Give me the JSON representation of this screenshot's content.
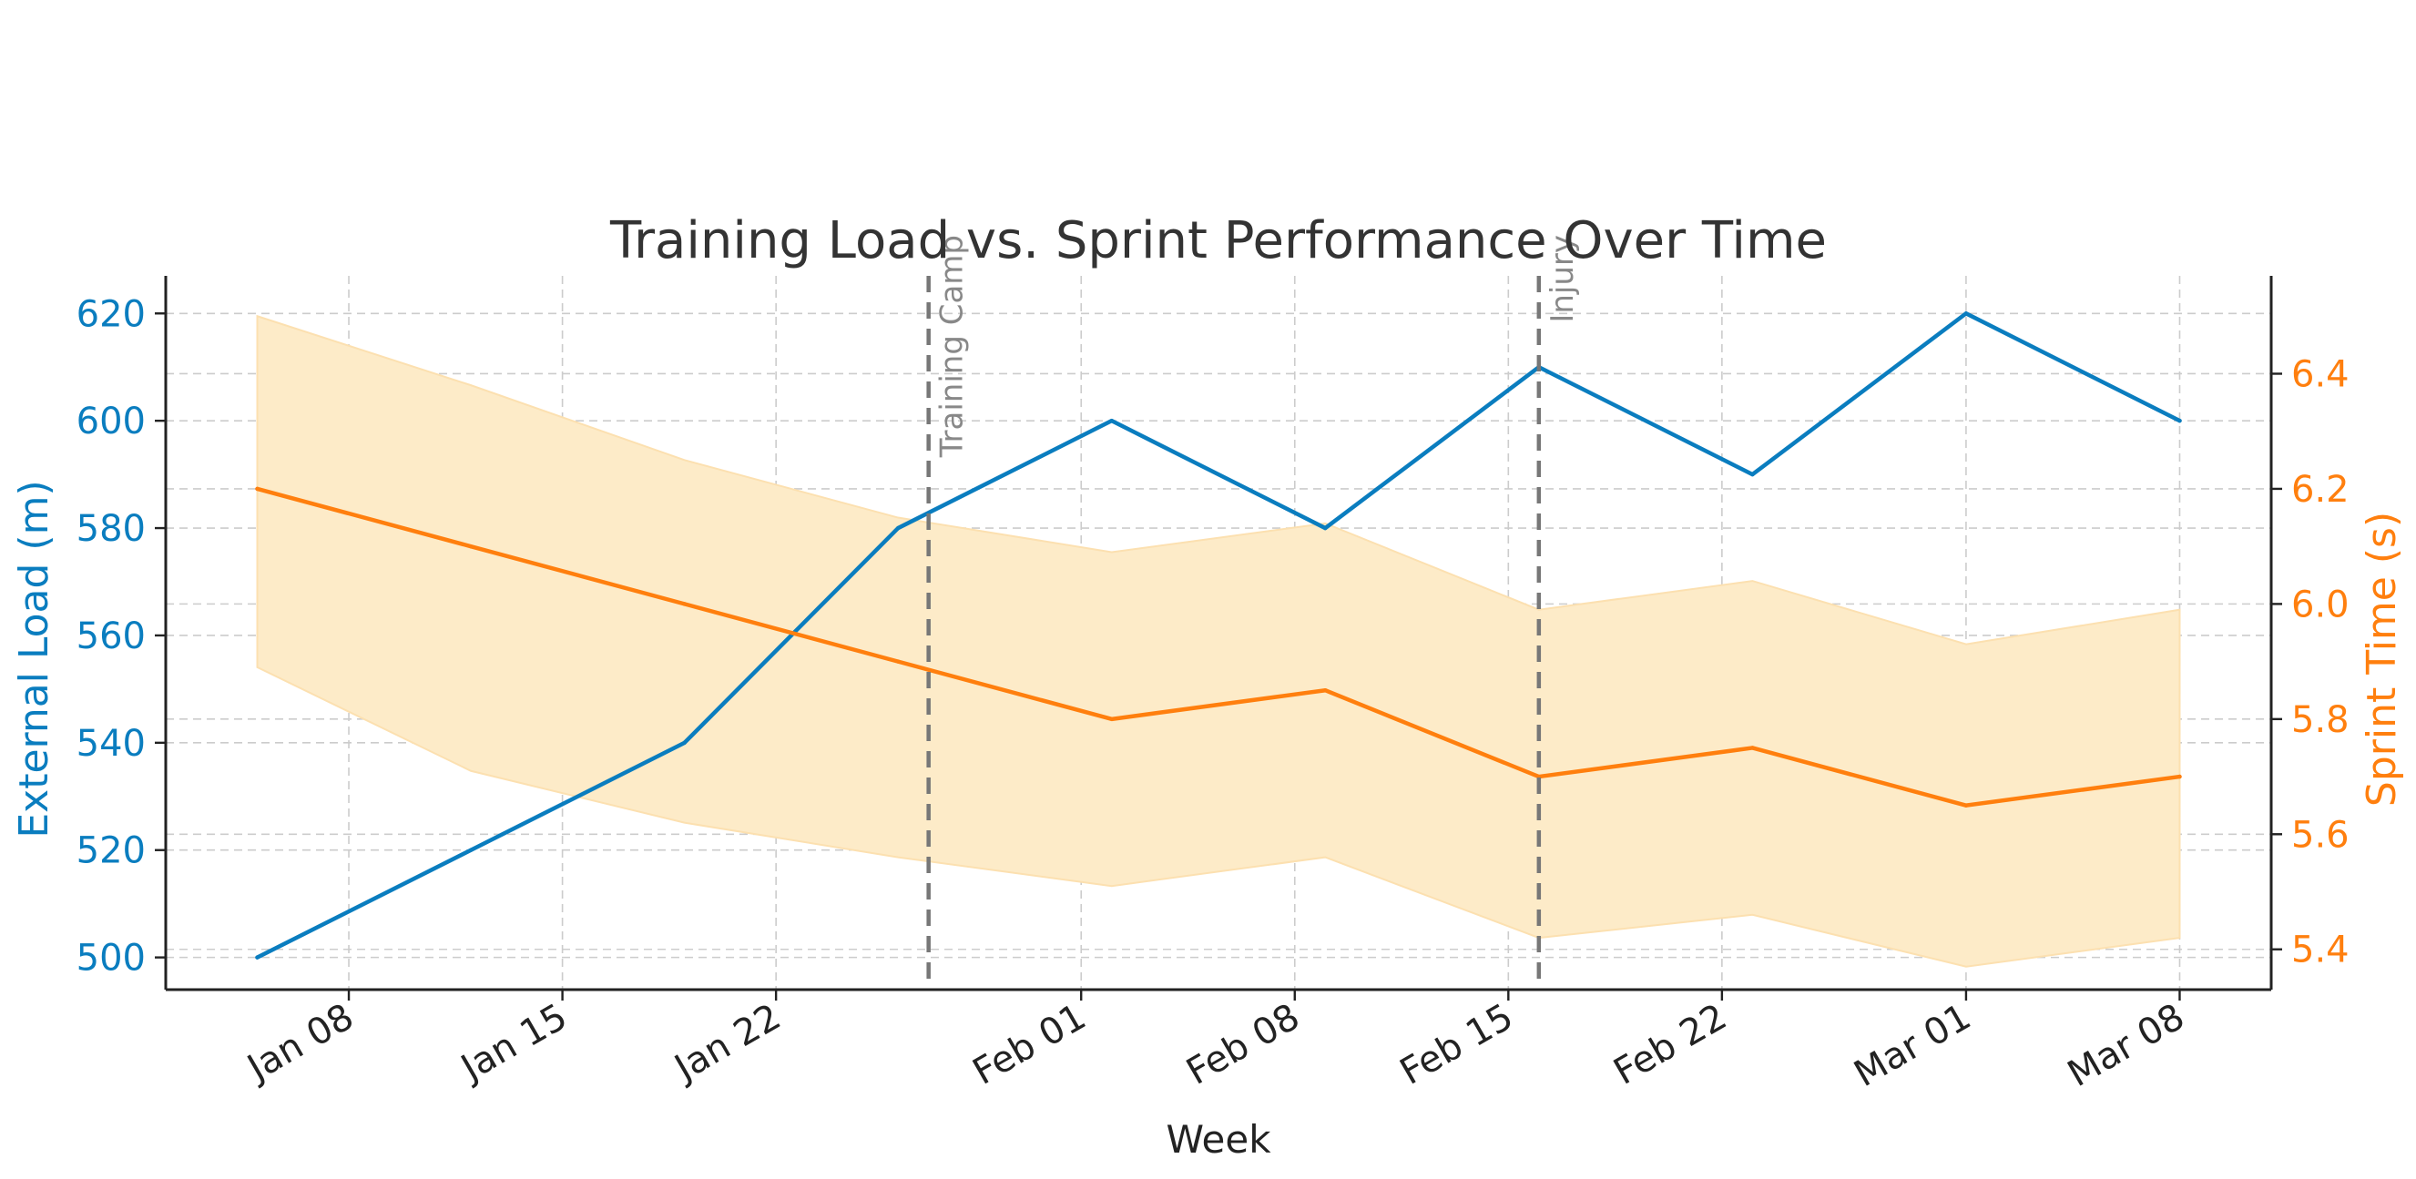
{
  "chart_data": {
    "type": "line",
    "title": "Training Load vs. Sprint Performance Over Time",
    "xlabel": "Week",
    "x": [
      "2024-01-05",
      "2024-01-12",
      "2024-01-19",
      "2024-01-26",
      "2024-02-02",
      "2024-02-09",
      "2024-02-16",
      "2024-02-23",
      "2024-03-01",
      "2024-03-08"
    ],
    "x_ticks": [
      {
        "date": "2024-01-08",
        "label": "Jan 08"
      },
      {
        "date": "2024-01-15",
        "label": "Jan 15"
      },
      {
        "date": "2024-01-22",
        "label": "Jan 22"
      },
      {
        "date": "2024-02-01",
        "label": "Feb 01"
      },
      {
        "date": "2024-02-08",
        "label": "Feb 08"
      },
      {
        "date": "2024-02-15",
        "label": "Feb 15"
      },
      {
        "date": "2024-02-22",
        "label": "Feb 22"
      },
      {
        "date": "2024-03-01",
        "label": "Mar 01"
      },
      {
        "date": "2024-03-08",
        "label": "Mar 08"
      }
    ],
    "xlim": [
      "2024-01-02",
      "2024-03-11"
    ],
    "left_axis": {
      "label": "External Load (m)",
      "ylim": [
        494,
        627
      ],
      "ticks": [
        500,
        520,
        540,
        560,
        580,
        600,
        620
      ],
      "color": "#0A7DBF"
    },
    "right_axis": {
      "label": "Sprint Time (s)",
      "ylim": [
        5.33,
        6.57
      ],
      "ticks": [
        5.4,
        5.6,
        5.8,
        6.0,
        6.2,
        6.4
      ],
      "tick_labels": [
        "5.4",
        "5.6",
        "5.8",
        "6.0",
        "6.2",
        "6.4"
      ],
      "color": "#FF7F0E"
    },
    "series": [
      {
        "name": "External Load",
        "axis": "left",
        "color": "#0A7DBF",
        "values": [
          500,
          520,
          540,
          580,
          600,
          580,
          610,
          590,
          620,
          600
        ]
      },
      {
        "name": "Sprint Time",
        "axis": "right",
        "color": "#FF7F0E",
        "values": [
          6.2,
          6.1,
          6.0,
          5.9,
          5.8,
          5.85,
          5.7,
          5.75,
          5.65,
          5.7
        ],
        "band_lower": [
          5.89,
          5.71,
          5.62,
          5.56,
          5.51,
          5.56,
          5.42,
          5.46,
          5.37,
          5.42
        ],
        "band_upper": [
          6.5,
          6.38,
          6.25,
          6.15,
          6.09,
          6.14,
          5.99,
          6.04,
          5.93,
          5.99
        ],
        "band_color": "#FDEBC8"
      }
    ],
    "events": [
      {
        "date": "2024-01-27",
        "label": "Training Camp"
      },
      {
        "date": "2024-02-16",
        "label": "Injury"
      }
    ],
    "grid": true
  }
}
